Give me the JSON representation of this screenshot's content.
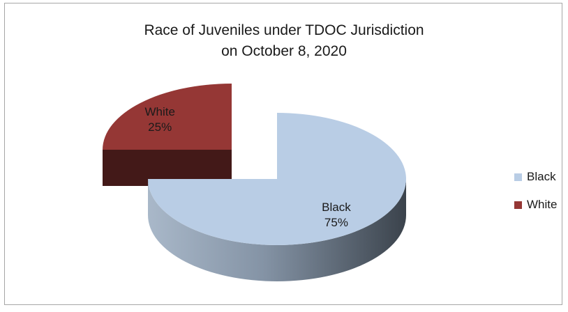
{
  "chart_data": {
    "type": "pie",
    "title": "Race of Juveniles under TDOC Jurisdiction",
    "subtitle": "on October 8, 2020",
    "slices": [
      {
        "label": "Black",
        "value": 75,
        "value_label": "75%",
        "color": "#b9cde5"
      },
      {
        "label": "White",
        "value": 25,
        "value_label": "25%",
        "color": "#953735"
      }
    ],
    "exploded": "White",
    "style": "3d",
    "legend_position": "right"
  }
}
